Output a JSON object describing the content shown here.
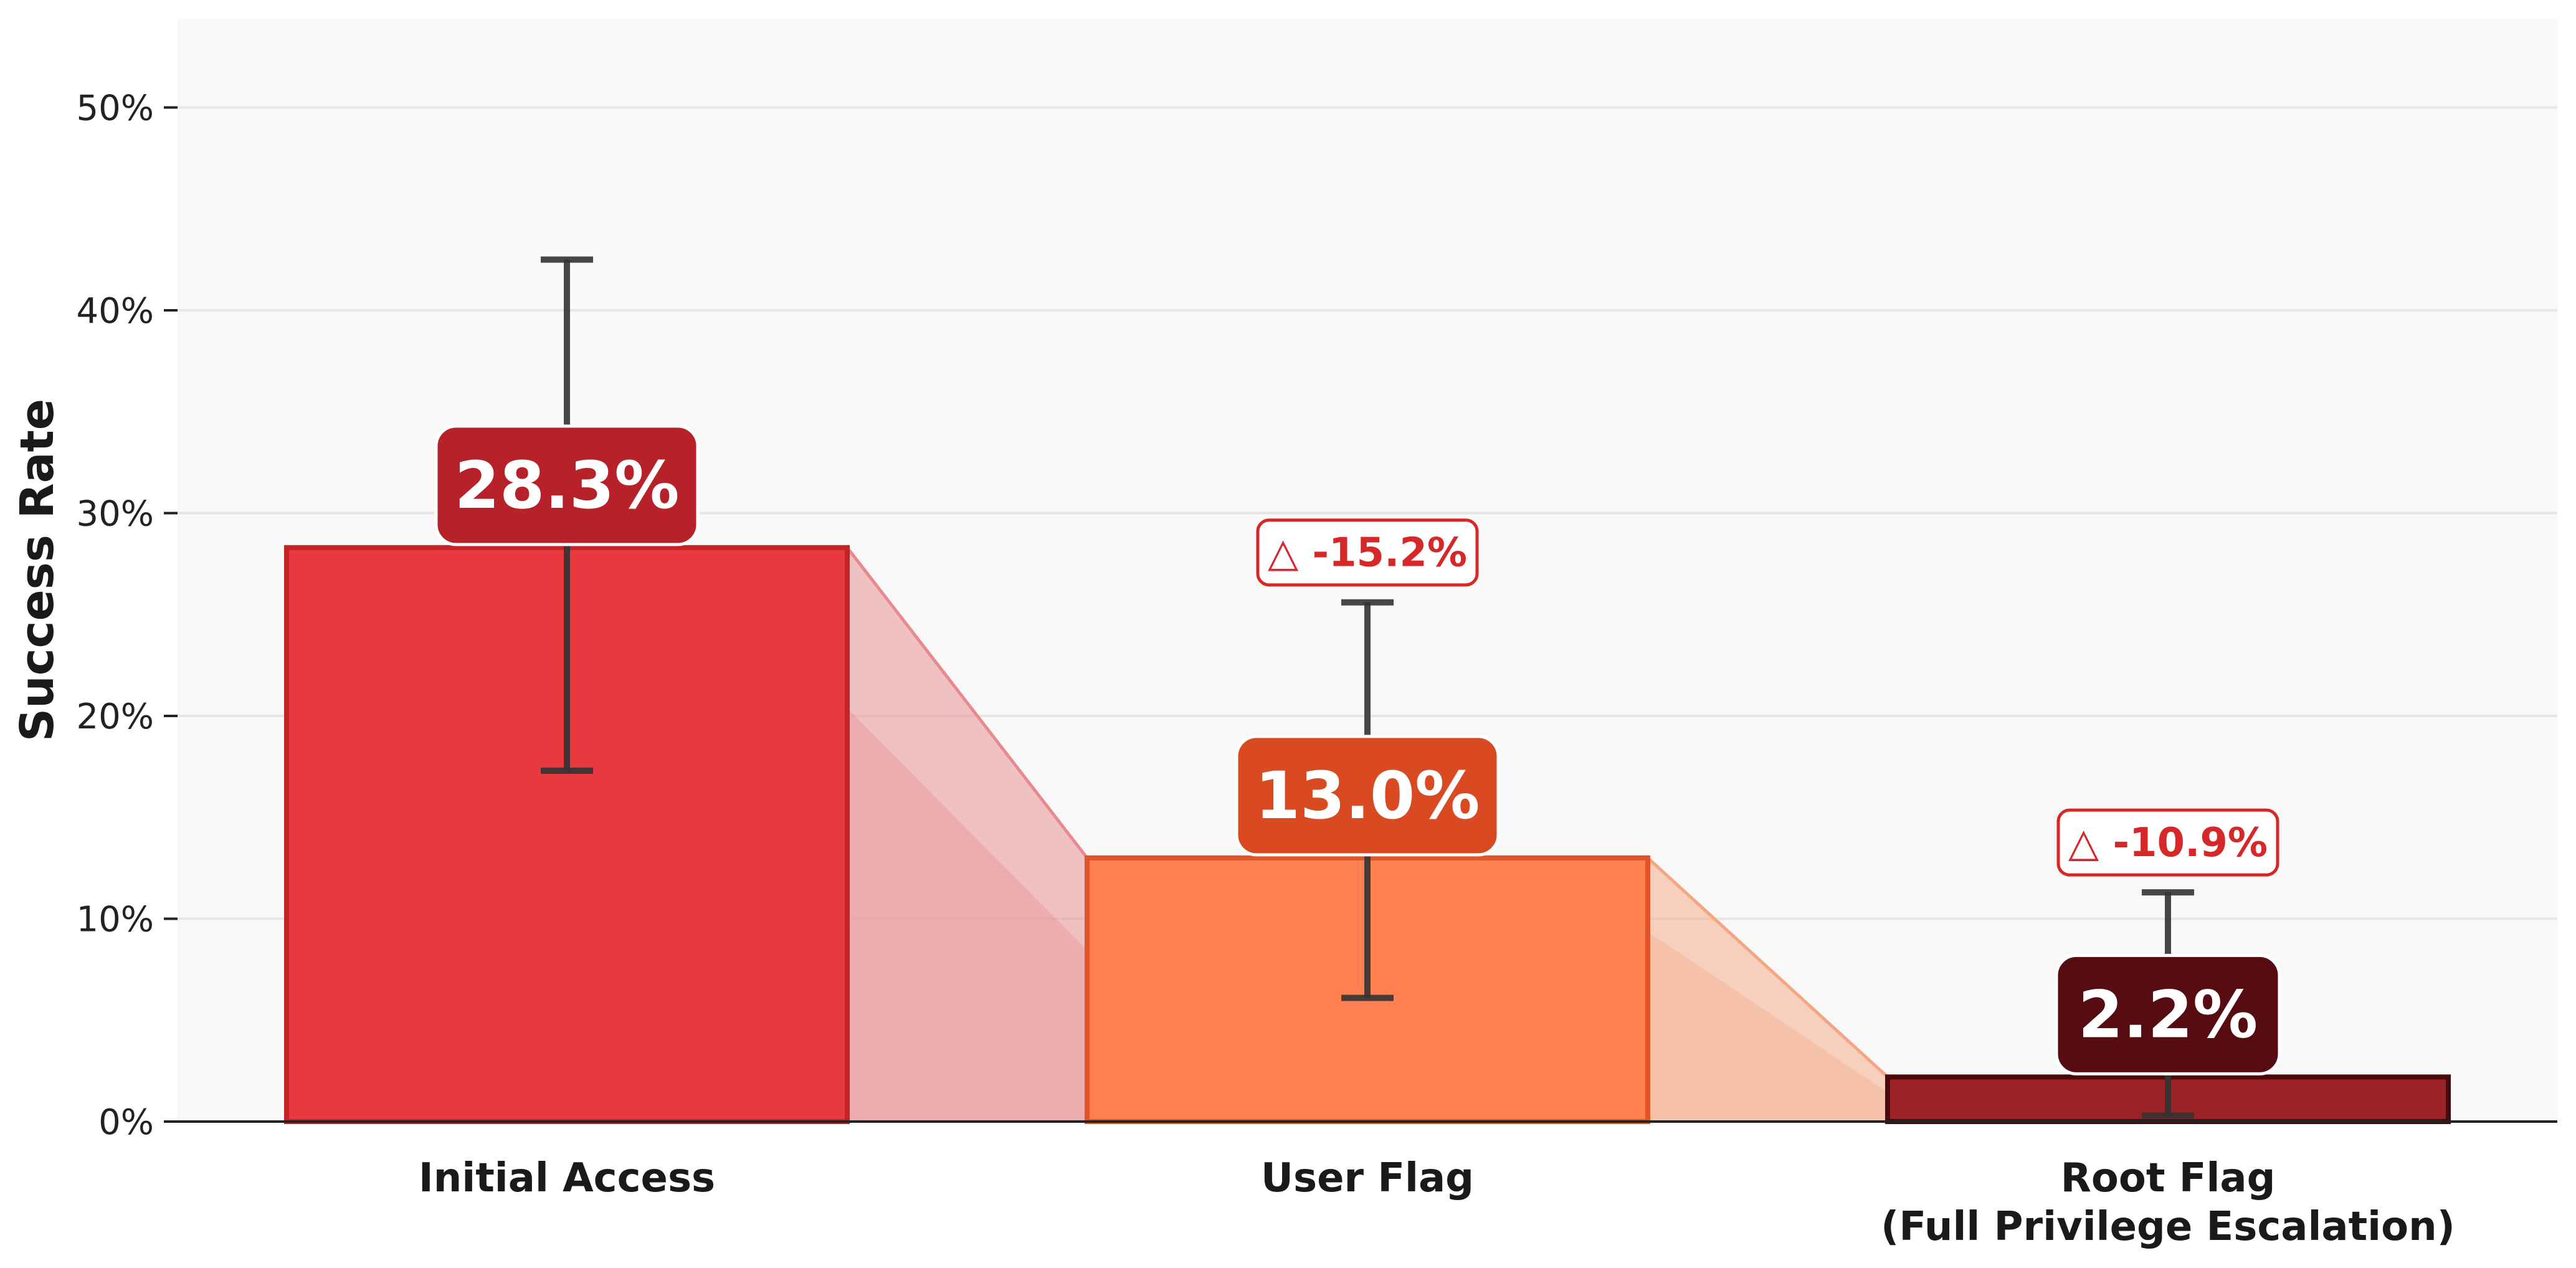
{
  "chart_data": {
    "type": "bar",
    "title": "",
    "xlabel": "",
    "ylabel": "Success Rate",
    "ylim": [
      0,
      55
    ],
    "y_ticks": [
      {
        "value": 0,
        "label": "0%"
      },
      {
        "value": 10,
        "label": "10%"
      },
      {
        "value": 20,
        "label": "20%"
      },
      {
        "value": 30,
        "label": "30%"
      },
      {
        "value": 40,
        "label": "40%"
      },
      {
        "value": 50,
        "label": "50%"
      }
    ],
    "grid": "horizontal",
    "categories": [
      {
        "line1": "Initial Access",
        "line2": ""
      },
      {
        "line1": "User Flag",
        "line2": ""
      },
      {
        "line1": "Root Flag",
        "line2": "(Full Privilege Escalation)"
      }
    ],
    "values": [
      28.3,
      13.0,
      2.2
    ],
    "value_labels": [
      "28.3%",
      "13.0%",
      "2.2%"
    ],
    "error_bars": [
      {
        "low": 17.3,
        "high": 42.5
      },
      {
        "low": 6.1,
        "high": 25.6
      },
      {
        "low": 0.3,
        "high": 11.3
      }
    ],
    "deltas": [
      {
        "between": [
          0,
          1
        ],
        "label": "△ -15.2%"
      },
      {
        "between": [
          1,
          2
        ],
        "label": "△ -10.9%"
      }
    ],
    "colors": {
      "bars": [
        "#e83a3e",
        "#ff8152",
        "#9b2226"
      ],
      "bar_edges": [
        "#c42428",
        "#e05428",
        "#4a0a0d"
      ],
      "label_boxes": [
        "#b7222a",
        "#d94a22",
        "#560c10"
      ],
      "connectors": [
        "#e88a8c",
        "#f4a582"
      ],
      "delta": "#d62828",
      "error_bar": "#333333",
      "plot_bg": "#f8f8f8",
      "grid": "#e6e6e6"
    }
  }
}
